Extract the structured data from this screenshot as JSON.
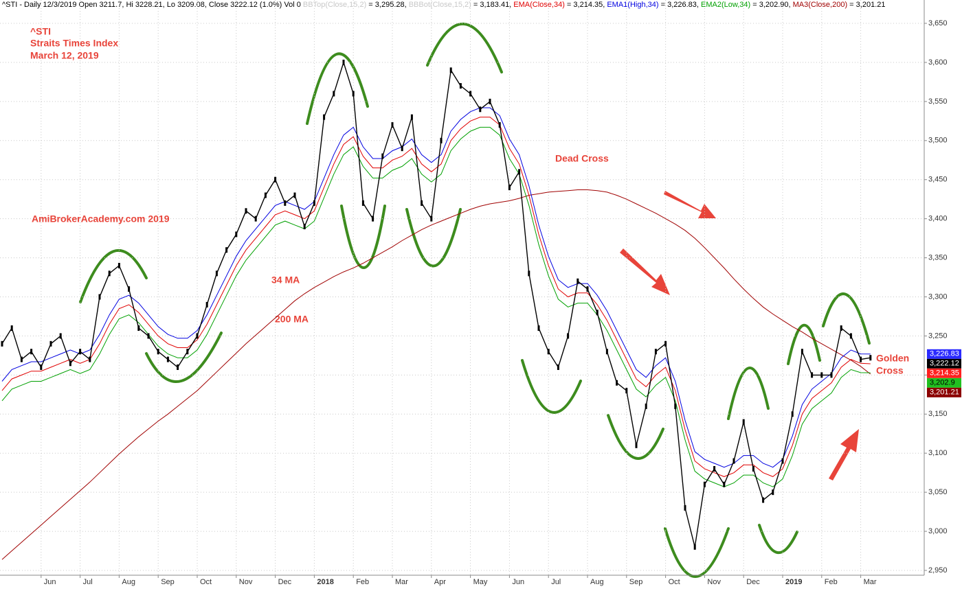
{
  "chart_data": {
    "type": "line",
    "header": [
      {
        "text": "^STI - Daily 12/3/2019 Open 3211.7, Hi 3228.21, Lo 3209.08, Close 3222.12 (1.0%) Vol 0 ",
        "color": "#000000"
      },
      {
        "text": "BBTop(Close,15,2)",
        "color": "#c8c8c8"
      },
      {
        "text": " = 3,295.28, ",
        "color": "#000000"
      },
      {
        "text": "BBBot(Close,15,2)",
        "color": "#c8c8c8"
      },
      {
        "text": " = 3,183.41, ",
        "color": "#000000"
      },
      {
        "text": "EMA(Close,34)",
        "color": "#e00000"
      },
      {
        "text": " = 3,214.35, ",
        "color": "#000000"
      },
      {
        "text": "EMA1(High,34)",
        "color": "#0000e0"
      },
      {
        "text": " = 3,226.83, ",
        "color": "#000000"
      },
      {
        "text": "EMA2(Low,34)",
        "color": "#00a000"
      },
      {
        "text": " = 3,202.90, ",
        "color": "#000000"
      },
      {
        "text": "MA3(Close,200)",
        "color": "#a00000"
      },
      {
        "text": " = 3,201.21",
        "color": "#000000"
      }
    ],
    "annotations": [
      "^STI",
      "Straits Times Index",
      "March 12, 2019",
      "AmiBrokerAcademy.com  2019",
      "34 MA",
      "200 MA",
      "Dead Cross",
      "Golden",
      "Cross"
    ],
    "categories": [
      null,
      null,
      null,
      null,
      "Jun",
      null,
      null,
      null,
      "Jul",
      null,
      null,
      null,
      "Aug",
      null,
      null,
      null,
      "Sep",
      null,
      null,
      null,
      "Oct",
      null,
      null,
      null,
      "Nov",
      null,
      null,
      null,
      "Dec",
      null,
      null,
      null,
      "2018",
      null,
      null,
      null,
      "Feb",
      null,
      null,
      null,
      "Mar",
      null,
      null,
      null,
      "Apr",
      null,
      null,
      null,
      "May",
      null,
      null,
      null,
      "Jun",
      null,
      null,
      null,
      "Jul",
      null,
      null,
      null,
      "Aug",
      null,
      null,
      null,
      "Sep",
      null,
      null,
      null,
      "Oct",
      null,
      null,
      null,
      "Nov",
      null,
      null,
      null,
      "Dec",
      null,
      null,
      null,
      "2019",
      null,
      null,
      null,
      "Feb",
      null,
      null,
      null,
      "Mar",
      null
    ],
    "series": [
      {
        "color": "#000000",
        "values": [
          3240,
          3260,
          3220,
          3230,
          3210,
          3240,
          3250,
          3215,
          3230,
          3220,
          3300,
          3330,
          3340,
          3310,
          3260,
          3250,
          3230,
          3220,
          3210,
          3230,
          3250,
          3290,
          3330,
          3360,
          3380,
          3410,
          3400,
          3430,
          3450,
          3420,
          3430,
          3390,
          3420,
          3530,
          3560,
          3600,
          3560,
          3420,
          3400,
          3480,
          3520,
          3490,
          3530,
          3420,
          3400,
          3500,
          3590,
          3570,
          3560,
          3540,
          3550,
          3520,
          3440,
          3460,
          3330,
          3260,
          3230,
          3210,
          3250,
          3320,
          3310,
          3280,
          3230,
          3190,
          3180,
          3110,
          3160,
          3230,
          3240,
          3160,
          3030,
          2980,
          3060,
          3080,
          3060,
          3090,
          3140,
          3080,
          3040,
          3050,
          3090,
          3150,
          3230,
          3200,
          3200,
          3200,
          3260,
          3250,
          3220,
          3222.12
        ]
      },
      {
        "color": "#0000e0",
        "values": [
          3192,
          3207,
          3212,
          3217,
          3217,
          3222,
          3227,
          3232,
          3227,
          3232,
          3252,
          3277,
          3297,
          3302,
          3292,
          3277,
          3262,
          3252,
          3247,
          3247,
          3257,
          3277,
          3302,
          3327,
          3352,
          3372,
          3387,
          3402,
          3417,
          3422,
          3417,
          3412,
          3422,
          3452,
          3482,
          3507,
          3517,
          3492,
          3477,
          3477,
          3487,
          3492,
          3502,
          3482,
          3472,
          3482,
          3512,
          3527,
          3537,
          3542,
          3542,
          3532,
          3502,
          3482,
          3442,
          3392,
          3352,
          3322,
          3312,
          3317,
          3317,
          3302,
          3282,
          3257,
          3232,
          3207,
          3197,
          3212,
          3222,
          3192,
          3142,
          3102,
          3092,
          3087,
          3082,
          3087,
          3097,
          3097,
          3087,
          3082,
          3092,
          3122,
          3162,
          3182,
          3192,
          3202,
          3222,
          3232,
          3227,
          3226.83
        ]
      },
      {
        "color": "#e00000",
        "values": [
          3180,
          3195,
          3200,
          3205,
          3205,
          3210,
          3215,
          3220,
          3215,
          3220,
          3240,
          3265,
          3285,
          3290,
          3280,
          3265,
          3250,
          3240,
          3235,
          3235,
          3245,
          3265,
          3290,
          3315,
          3340,
          3360,
          3375,
          3390,
          3405,
          3410,
          3405,
          3400,
          3410,
          3440,
          3470,
          3495,
          3505,
          3480,
          3465,
          3465,
          3475,
          3480,
          3490,
          3470,
          3460,
          3470,
          3500,
          3515,
          3525,
          3530,
          3530,
          3520,
          3490,
          3470,
          3430,
          3380,
          3340,
          3310,
          3300,
          3305,
          3305,
          3290,
          3270,
          3245,
          3220,
          3195,
          3185,
          3200,
          3210,
          3180,
          3130,
          3090,
          3080,
          3075,
          3070,
          3075,
          3085,
          3085,
          3075,
          3070,
          3080,
          3110,
          3150,
          3170,
          3180,
          3190,
          3210,
          3220,
          3215,
          3214.35
        ]
      },
      {
        "color": "#00a000",
        "values": [
          3167,
          3182,
          3187,
          3192,
          3192,
          3197,
          3202,
          3207,
          3202,
          3207,
          3227,
          3252,
          3272,
          3277,
          3267,
          3252,
          3237,
          3227,
          3222,
          3222,
          3232,
          3252,
          3277,
          3302,
          3327,
          3347,
          3362,
          3377,
          3392,
          3397,
          3392,
          3387,
          3397,
          3427,
          3457,
          3482,
          3492,
          3467,
          3452,
          3452,
          3462,
          3467,
          3477,
          3457,
          3447,
          3457,
          3487,
          3502,
          3512,
          3517,
          3517,
          3507,
          3477,
          3457,
          3417,
          3367,
          3327,
          3297,
          3287,
          3292,
          3292,
          3277,
          3257,
          3232,
          3207,
          3182,
          3172,
          3187,
          3197,
          3167,
          3117,
          3077,
          3067,
          3062,
          3057,
          3062,
          3072,
          3072,
          3062,
          3057,
          3067,
          3097,
          3137,
          3157,
          3167,
          3177,
          3197,
          3207,
          3203,
          3202.9
        ]
      },
      {
        "color": "#a00000",
        "values": [
          2964,
          2975,
          2986,
          2997,
          3008,
          3019,
          3030,
          3041,
          3052,
          3063,
          3075,
          3087,
          3099,
          3110,
          3121,
          3131,
          3141,
          3150,
          3160,
          3170,
          3180,
          3192,
          3204,
          3216,
          3228,
          3240,
          3251,
          3262,
          3273,
          3284,
          3295,
          3304,
          3312,
          3319,
          3326,
          3332,
          3337,
          3343,
          3350,
          3357,
          3364,
          3372,
          3379,
          3386,
          3392,
          3397,
          3402,
          3407,
          3412,
          3416,
          3419,
          3421,
          3423,
          3426,
          3430,
          3432,
          3434,
          3435,
          3436,
          3437,
          3437,
          3436,
          3434,
          3430,
          3425,
          3419,
          3413,
          3407,
          3400,
          3393,
          3385,
          3375,
          3363,
          3350,
          3337,
          3323,
          3310,
          3298,
          3287,
          3278,
          3270,
          3262,
          3255,
          3247,
          3240,
          3233,
          3226,
          3219,
          3211,
          3201.21
        ]
      }
    ],
    "price_tags": [
      {
        "value": 3226.83,
        "label": "3,226.83",
        "color": "#2a2aff"
      },
      {
        "value": 3222.12,
        "label": "3,222.12",
        "color": "#000000"
      },
      {
        "value": 3214.35,
        "label": "3,214.35",
        "color": "#ff2020"
      },
      {
        "value": 3202.9,
        "label": "3,202.9",
        "color": "#20c020"
      },
      {
        "value": 3201.21,
        "label": "3,201.21",
        "color": "#8b0000"
      }
    ],
    "ylim": [
      2950,
      3650
    ],
    "yticks": [
      {
        "value": 2950,
        "label": "2,950"
      },
      {
        "value": 3000,
        "label": "3,000"
      },
      {
        "value": 3050,
        "label": "3,050"
      },
      {
        "value": 3100,
        "label": "3,100"
      },
      {
        "value": 3150,
        "label": "3,150"
      },
      {
        "value": 3200,
        "label": "3,200"
      },
      {
        "value": 3250,
        "label": "3,250"
      },
      {
        "value": 3300,
        "label": "3,300"
      },
      {
        "value": 3350,
        "label": "3,350"
      },
      {
        "value": 3400,
        "label": "3,400"
      },
      {
        "value": 3450,
        "label": "3,450"
      },
      {
        "value": 3500,
        "label": "3,500"
      },
      {
        "value": 3550,
        "label": "3,550"
      },
      {
        "value": 3600,
        "label": "3,600"
      },
      {
        "value": 3650,
        "label": "3,650"
      }
    ],
    "grid": true
  }
}
